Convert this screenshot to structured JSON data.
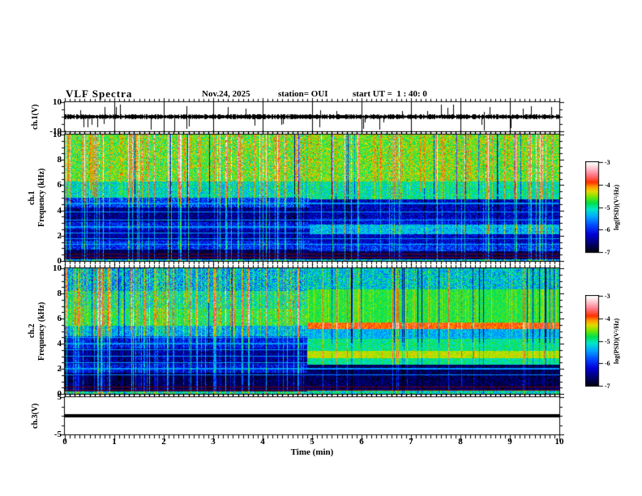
{
  "header": {
    "title": "VLF Spectra",
    "date": "Nov.24, 2025",
    "station": "station= OUI",
    "start_ut": "start UT =  1 : 40: 0"
  },
  "xaxis": {
    "label": "Time (min)",
    "range_min": [
      0,
      10
    ],
    "ticks": [
      {
        "v": 0,
        "label": "0"
      },
      {
        "v": 1,
        "label": "1"
      },
      {
        "v": 2,
        "label": "2"
      },
      {
        "v": 3,
        "label": "3"
      },
      {
        "v": 4,
        "label": "4"
      },
      {
        "v": 5,
        "label": "5"
      },
      {
        "v": 6,
        "label": "6"
      },
      {
        "v": 7,
        "label": "7"
      },
      {
        "v": 8,
        "label": "8"
      },
      {
        "v": 9,
        "label": "9"
      },
      {
        "v": 10,
        "label": "10"
      }
    ]
  },
  "panels": {
    "ch1_wave": {
      "ylabel": "ch.1(V)",
      "yrange": [
        -10,
        10
      ],
      "yticks": [
        {
          "v": 10,
          "label": "10"
        },
        {
          "v": -10,
          "label": "-10"
        }
      ]
    },
    "ch1_spec": {
      "ylabel_channel": "ch.1",
      "ylabel_axis": "Frequency (kHz)",
      "yrange": [
        0,
        10
      ],
      "yticks": [
        {
          "v": 10,
          "label": "10"
        },
        {
          "v": 8,
          "label": "8"
        },
        {
          "v": 6,
          "label": "6"
        },
        {
          "v": 4,
          "label": "4"
        },
        {
          "v": 2,
          "label": "2"
        },
        {
          "v": 0,
          "label": "0"
        }
      ]
    },
    "ch2_spec": {
      "ylabel_channel": "ch.2",
      "ylabel_axis": "Frequency (kHz)",
      "yrange": [
        0,
        10
      ],
      "yticks": [
        {
          "v": 10,
          "label": "10"
        },
        {
          "v": 8,
          "label": "8"
        },
        {
          "v": 6,
          "label": "6"
        },
        {
          "v": 4,
          "label": "4"
        },
        {
          "v": 2,
          "label": "2"
        },
        {
          "v": 0,
          "label": "0"
        }
      ]
    },
    "ch3_wave": {
      "ylabel": "ch.3(V)",
      "yrange": [
        -5,
        5
      ],
      "yticks": [
        {
          "v": 5,
          "label": "5"
        },
        {
          "v": -5,
          "label": "-5"
        }
      ]
    }
  },
  "colorbars": [
    {
      "label": "log(PSD)(V²/Hz)",
      "range": [
        -7,
        -3
      ],
      "ticks": [
        {
          "v": -3,
          "label": "-3"
        },
        {
          "v": -4,
          "label": "-4"
        },
        {
          "v": -5,
          "label": "-5"
        },
        {
          "v": -6,
          "label": "-6"
        },
        {
          "v": -7,
          "label": "-7"
        }
      ]
    },
    {
      "label": "log(PSD)(V²/Hz)",
      "range": [
        -7,
        -3
      ],
      "ticks": [
        {
          "v": -3,
          "label": "-3"
        },
        {
          "v": -4,
          "label": "-4"
        },
        {
          "v": -5,
          "label": "-5"
        },
        {
          "v": -6,
          "label": "-6"
        },
        {
          "v": -7,
          "label": "-7"
        }
      ]
    }
  ],
  "colormap_stops": [
    {
      "t": 0.0,
      "color": "#000008"
    },
    {
      "t": 0.1,
      "color": "#000070"
    },
    {
      "t": 0.2,
      "color": "#0000d8"
    },
    {
      "t": 0.3,
      "color": "#0048ff"
    },
    {
      "t": 0.4,
      "color": "#00aaff"
    },
    {
      "t": 0.48,
      "color": "#00e8c8"
    },
    {
      "t": 0.55,
      "color": "#00e048"
    },
    {
      "t": 0.62,
      "color": "#7ce800"
    },
    {
      "t": 0.68,
      "color": "#e8d800"
    },
    {
      "t": 0.73,
      "color": "#ff9800"
    },
    {
      "t": 0.78,
      "color": "#ff3000"
    },
    {
      "t": 0.86,
      "color": "#ff7888"
    },
    {
      "t": 0.94,
      "color": "#ffccd4"
    },
    {
      "t": 1.0,
      "color": "#ffffff"
    }
  ],
  "chart_data": [
    {
      "type": "line",
      "name": "ch1_voltage_waveform",
      "ylabel": "ch.1(V)",
      "xlabel": "Time (min)",
      "xlim": [
        0,
        10
      ],
      "ylim": [
        -10,
        10
      ],
      "baseline_v": 0,
      "noise_band_v": 1.6,
      "spike_max_v": 8.5,
      "minute_gridlines": true,
      "description": "Continuous noisy voltage trace centered on 0 V with impulsive sferic spikes up to about +/-8 V throughout the 10 minutes."
    },
    {
      "type": "heatmap",
      "name": "ch1_spectrogram",
      "ylabel": "ch.1 Frequency (kHz)",
      "zlabel": "log(PSD)(V²/Hz)",
      "xlim": [
        0,
        10
      ],
      "ylim": [
        0,
        10
      ],
      "zlim": [
        -7,
        -3
      ],
      "transition_min": 4.95,
      "bands_before": [
        {
          "f": [
            6.3,
            10.01
          ],
          "psd": -4.65,
          "jitter": 0.5
        },
        {
          "f": [
            5.0,
            6.3
          ],
          "psd": -5.15,
          "jitter": 0.45
        },
        {
          "f": [
            4.2,
            5.0
          ],
          "psd": -5.9,
          "jitter": 0.5
        },
        {
          "f": [
            3.1,
            4.2
          ],
          "psd": -6.55,
          "jitter": 0.4
        },
        {
          "f": [
            2.5,
            3.1
          ],
          "psd": -6.1,
          "jitter": 0.45
        },
        {
          "f": [
            1.6,
            2.5
          ],
          "psd": -6.45,
          "jitter": 0.4
        },
        {
          "f": [
            0.9,
            1.6
          ],
          "psd": -6.0,
          "jitter": 0.45
        },
        {
          "f": [
            0.15,
            0.9
          ],
          "psd": -6.75,
          "jitter": 0.3
        },
        {
          "f": [
            0.0,
            0.15
          ],
          "psd": -5.3,
          "jitter": 0.6
        }
      ],
      "bands_after": [
        {
          "f": [
            6.3,
            10.01
          ],
          "psd": -4.6,
          "jitter": 0.45
        },
        {
          "f": [
            4.9,
            6.3
          ],
          "psd": -5.05,
          "jitter": 0.4
        },
        {
          "f": [
            3.4,
            4.9
          ],
          "psd": -6.35,
          "jitter": 0.45
        },
        {
          "f": [
            2.9,
            3.4
          ],
          "psd": -6.15,
          "jitter": 0.4
        },
        {
          "f": [
            2.1,
            2.9
          ],
          "psd": -5.35,
          "jitter": 0.4
        },
        {
          "f": [
            1.4,
            2.1
          ],
          "psd": -6.3,
          "jitter": 0.4
        },
        {
          "f": [
            0.8,
            1.4
          ],
          "psd": -5.95,
          "jitter": 0.45
        },
        {
          "f": [
            0.15,
            0.8
          ],
          "psd": -6.7,
          "jitter": 0.3
        },
        {
          "f": [
            0.0,
            0.15
          ],
          "psd": -5.3,
          "jitter": 0.6
        }
      ],
      "harmonic_lines": [
        {
          "f": 5.2,
          "psd": -5.3
        },
        {
          "f": 4.55,
          "psd": -5.5
        },
        {
          "f": 3.9,
          "psd": -5.5
        },
        {
          "f": 3.25,
          "psd": -5.45
        },
        {
          "f": 2.7,
          "psd": -5.5
        },
        {
          "f": 2.2,
          "psd": -5.45
        },
        {
          "f": 1.75,
          "psd": -5.5
        },
        {
          "f": 1.3,
          "psd": -5.45
        }
      ],
      "colored_lines": [
        {
          "f": 0.3,
          "color": "#7a0010"
        },
        {
          "f": 0.55,
          "color": "#6a0008"
        }
      ],
      "streaks_before": {
        "strong_prob": 0.2,
        "strong_min": 0.5,
        "strong_max": 1.8,
        "weak_prob": 0.34,
        "weak_max": 0.45,
        "dark_prob": 0.05,
        "red_top_prob": 0.055
      },
      "streaks_after": {
        "strong_prob": 0.16,
        "strong_min": 0.5,
        "strong_max": 1.7,
        "weak_prob": 0.3,
        "weak_max": 0.4,
        "dark_prob": 0.05,
        "red_top_prob": 0.05
      },
      "description": "Broadband sferic vertical streaks; bright green band above ~6.3 kHz, blue/dark-blue below 5 kHz. After ~5 min a cyan band appears near 2.1-2.9 kHz."
    },
    {
      "type": "heatmap",
      "name": "ch2_spectrogram",
      "ylabel": "ch.2 Frequency (kHz)",
      "zlabel": "log(PSD)(V²/Hz)",
      "xlim": [
        0,
        10
      ],
      "ylim": [
        0,
        10
      ],
      "zlim": [
        -7,
        -3
      ],
      "transition_min": 4.9,
      "bands_before": [
        {
          "f": [
            8.2,
            10.01
          ],
          "psd": -5.4,
          "jitter": 0.6
        },
        {
          "f": [
            6.8,
            8.2
          ],
          "psd": -5.05,
          "jitter": 0.5
        },
        {
          "f": [
            5.4,
            6.8
          ],
          "psd": -4.85,
          "jitter": 0.35
        },
        {
          "f": [
            4.6,
            5.4
          ],
          "psd": -5.45,
          "jitter": 0.4
        },
        {
          "f": [
            3.6,
            4.6
          ],
          "psd": -6.1,
          "jitter": 0.45
        },
        {
          "f": [
            2.4,
            3.6
          ],
          "psd": -6.5,
          "jitter": 0.4
        },
        {
          "f": [
            1.7,
            2.4
          ],
          "psd": -6.2,
          "jitter": 0.45
        },
        {
          "f": [
            0.2,
            1.7
          ],
          "psd": -6.75,
          "jitter": 0.3
        },
        {
          "f": [
            0.0,
            0.2
          ],
          "psd": -5.1,
          "jitter": 0.55
        }
      ],
      "bands_after": [
        {
          "f": [
            8.3,
            10.01
          ],
          "psd": -5.25,
          "jitter": 0.55
        },
        {
          "f": [
            5.7,
            8.3
          ],
          "psd": -4.75,
          "jitter": 0.22
        },
        {
          "f": [
            5.15,
            5.7
          ],
          "psd": -4.0,
          "jitter": 0.18
        },
        {
          "f": [
            4.4,
            5.15
          ],
          "psd": -5.4,
          "jitter": 0.28
        },
        {
          "f": [
            3.4,
            4.4
          ],
          "psd": -4.95,
          "jitter": 0.32
        },
        {
          "f": [
            2.85,
            3.4
          ],
          "psd": -4.4,
          "jitter": 0.18
        },
        {
          "f": [
            2.3,
            2.85
          ],
          "psd": -5.0,
          "jitter": 0.3
        },
        {
          "f": [
            0.25,
            2.3
          ],
          "psd": -6.7,
          "jitter": 0.35
        },
        {
          "f": [
            0.0,
            0.25
          ],
          "psd": -5.1,
          "jitter": 0.55
        }
      ],
      "harmonic_lines": [
        {
          "f": 4.5,
          "psd": -5.45
        },
        {
          "f": 4.0,
          "psd": -5.5
        },
        {
          "f": 3.5,
          "psd": -5.45
        },
        {
          "f": 3.0,
          "psd": -5.5
        },
        {
          "f": 2.5,
          "psd": -5.45
        },
        {
          "f": 2.0,
          "psd": -5.5
        },
        {
          "f": 1.5,
          "psd": -5.55
        }
      ],
      "colored_lines": [
        {
          "f": 0.3,
          "color": "#7a0010"
        },
        {
          "f": 0.55,
          "color": "#6a0008"
        }
      ],
      "streaks_before": {
        "strong_prob": 0.2,
        "strong_min": 0.5,
        "strong_max": 1.7,
        "weak_prob": 0.34,
        "weak_max": 0.45,
        "dark_prob": 0.05,
        "red_top_prob": 0.04
      },
      "streaks_after": {
        "strong_prob": 0.09,
        "strong_min": 0.4,
        "strong_max": 1.1,
        "weak_prob": 0.22,
        "weak_max": 0.35,
        "dark_prob": 0.07,
        "red_top_prob": 0.01
      },
      "description": "Before ~4.9 min: streaky mixed spectrum, green 5.4-6.8 kHz, dark below 3.6 kHz. After ~4.9 min: intense orange/red band at 5.15-5.7 kHz, yellow band at 2.85-3.4 kHz, solid green 5.7-8.3 kHz, dark 0.25-2.3 kHz."
    },
    {
      "type": "line",
      "name": "ch3_voltage_waveform",
      "ylabel": "ch.3(V)",
      "xlabel": "Time (min)",
      "xlim": [
        0,
        10
      ],
      "ylim": [
        -5,
        5
      ],
      "constant_v": 0,
      "description": "Flat thick line at 0 V for the whole interval."
    }
  ]
}
